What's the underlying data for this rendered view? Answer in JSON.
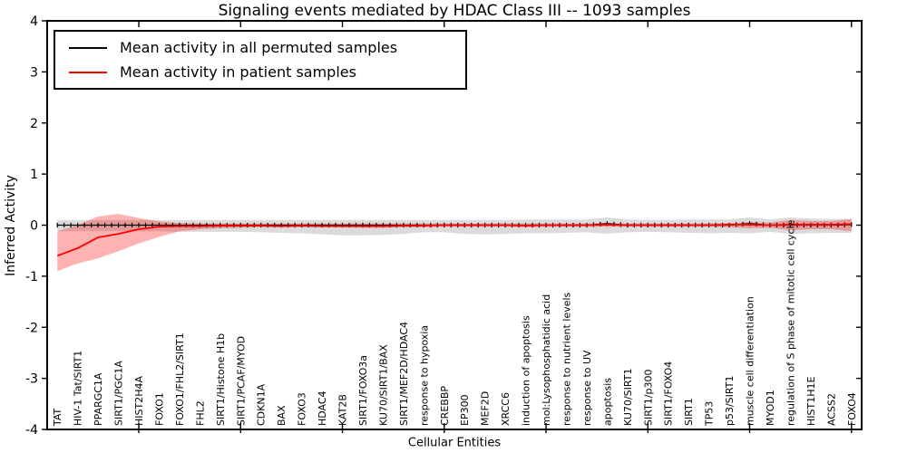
{
  "title": "Signaling events mediated by HDAC Class III -- 1093 samples",
  "axes": {
    "x_label": "Cellular Entities",
    "y_label": "Inferred Activity",
    "y_ticks": [
      "-4",
      "-3",
      "-2",
      "-1",
      "0",
      "1",
      "2",
      "3",
      "4"
    ]
  },
  "legend": {
    "items": [
      {
        "label": "Mean activity in all permuted samples",
        "color": "#000000"
      },
      {
        "label": "Mean activity in patient samples",
        "color": "#ff0000"
      }
    ],
    "position": "upper left"
  },
  "chart_data": {
    "type": "line",
    "title": "Signaling events mediated by HDAC Class III -- 1093 samples",
    "xlabel": "Cellular Entities",
    "ylabel": "Inferred Activity",
    "ylim": [
      -4,
      4
    ],
    "xlim": [
      0.5,
      40.5
    ],
    "grid": false,
    "legend_position": "upper left",
    "x_major_tick_values": [
      5,
      10,
      15,
      20,
      25,
      30,
      35,
      40
    ],
    "categories": [
      "TAT",
      "HIV-1 Tat/SIRT1",
      "PPARGC1A",
      "SIRT1/PGC1A",
      "HIST2H4A",
      "FOXO1",
      "FOXO1/FHL2/SIRT1",
      "FHL2",
      "SIRT1/Histone H1b",
      "SIRT1/PCAF/MYOD",
      "CDKN1A",
      "BAX",
      "FOXO3",
      "HDAC4",
      "KAT2B",
      "SIRT1/FOXO3a",
      "KU70/SIRT1/BAX",
      "SIRT1/MEF2D/HDAC4",
      "response to hypoxia",
      "CREBBP",
      "EP300",
      "MEF2D",
      "XRCC6",
      "induction of apoptosis",
      "mol:Lysophosphatidic acid",
      "response to nutrient levels",
      "response to UV",
      "apoptosis",
      "KU70/SIRT1",
      "SIRT1/p300",
      "SIRT1/FOXO4",
      "SIRT1",
      "TP53",
      "p53/SIRT1",
      "muscle cell differentiation",
      "MYOD1",
      "regulation of S phase of mitotic cell cycle",
      "HIST1H1E",
      "ACSS2",
      "FOXO4"
    ],
    "series": [
      {
        "name": "Mean activity in all permuted samples",
        "color": "#000000",
        "marker": "vertical-dash",
        "values": [
          0,
          0,
          0,
          0,
          0,
          0,
          0,
          0,
          0,
          0,
          0,
          0,
          0,
          0,
          0,
          0,
          0,
          0,
          0,
          0,
          0,
          0,
          0,
          0,
          0,
          0,
          0,
          0.03,
          0,
          0,
          0,
          0,
          0,
          0,
          0.03,
          0,
          0,
          0,
          0,
          0.01
        ],
        "band": {
          "color": "#aaaaaa",
          "lower": [
            -0.12,
            -0.12,
            -0.12,
            -0.12,
            -0.12,
            -0.12,
            -0.13,
            -0.13,
            -0.13,
            -0.13,
            -0.14,
            -0.15,
            -0.16,
            -0.18,
            -0.2,
            -0.2,
            -0.19,
            -0.17,
            -0.14,
            -0.14,
            -0.17,
            -0.18,
            -0.17,
            -0.16,
            -0.16,
            -0.15,
            -0.14,
            -0.17,
            -0.14,
            -0.13,
            -0.14,
            -0.15,
            -0.16,
            -0.15,
            -0.16,
            -0.13,
            -0.17,
            -0.16,
            -0.15,
            -0.15
          ],
          "upper": [
            0.1,
            0.1,
            0.1,
            0.1,
            0.1,
            0.1,
            0.1,
            0.1,
            0.1,
            0.1,
            0.1,
            0.1,
            0.1,
            0.1,
            0.1,
            0.1,
            0.1,
            0.1,
            0.1,
            0.1,
            0.1,
            0.1,
            0.1,
            0.11,
            0.11,
            0.11,
            0.11,
            0.15,
            0.11,
            0.1,
            0.1,
            0.11,
            0.11,
            0.11,
            0.15,
            0.11,
            0.15,
            0.13,
            0.12,
            0.12
          ]
        }
      },
      {
        "name": "Mean activity in patient samples",
        "color": "#ff0000",
        "marker": "none",
        "values": [
          -0.6,
          -0.45,
          -0.24,
          -0.17,
          -0.08,
          -0.03,
          -0.02,
          -0.02,
          -0.01,
          -0.01,
          -0.01,
          -0.02,
          -0.01,
          -0.02,
          -0.02,
          -0.02,
          -0.02,
          -0.01,
          -0.01,
          0,
          0,
          0,
          0,
          -0.01,
          0,
          0,
          0,
          0.01,
          0,
          0,
          0,
          0,
          0,
          0.01,
          0.01,
          0,
          0.01,
          0.01,
          0.01,
          0.02
        ],
        "band": {
          "color": "#ff0000",
          "lower": [
            -0.9,
            -0.75,
            -0.65,
            -0.51,
            -0.36,
            -0.23,
            -0.12,
            -0.08,
            -0.06,
            -0.05,
            -0.04,
            -0.04,
            -0.04,
            -0.04,
            -0.04,
            -0.05,
            -0.05,
            -0.04,
            -0.04,
            -0.03,
            -0.03,
            -0.03,
            -0.03,
            -0.04,
            -0.03,
            -0.03,
            -0.03,
            -0.03,
            -0.03,
            -0.03,
            -0.03,
            -0.03,
            -0.03,
            -0.04,
            -0.06,
            -0.05,
            -0.1,
            -0.08,
            -0.08,
            -0.12
          ],
          "upper": [
            -0.12,
            0.0,
            0.17,
            0.22,
            0.14,
            0.07,
            0.04,
            0.03,
            0.03,
            0.03,
            0.03,
            0.03,
            0.03,
            0.03,
            0.03,
            0.03,
            0.03,
            0.03,
            0.03,
            0.03,
            0.03,
            0.03,
            0.03,
            0.03,
            0.03,
            0.03,
            0.03,
            0.04,
            0.03,
            0.03,
            0.03,
            0.03,
            0.03,
            0.04,
            0.06,
            0.05,
            0.1,
            0.08,
            0.08,
            0.12
          ]
        }
      }
    ]
  }
}
